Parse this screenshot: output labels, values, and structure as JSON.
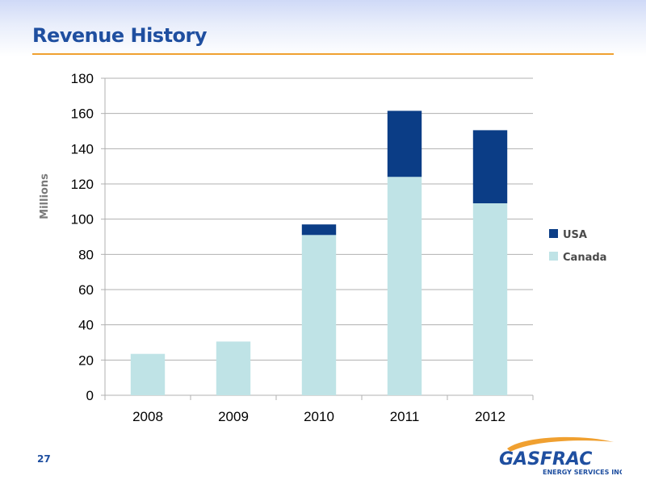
{
  "slide": {
    "title": "Revenue History",
    "page_number": "27"
  },
  "logo": {
    "name": "GASFRAC",
    "tagline": "ENERGY SERVICES INC.",
    "colors": {
      "text": "#1f4fa0",
      "swoosh": "#f0a030"
    }
  },
  "colors": {
    "title": "#1f4fa0",
    "rule": "#f0a030",
    "usa": "#0b3d86",
    "canada": "#bfe3e6",
    "grid": "#b0b0b0"
  },
  "chart_data": {
    "type": "bar",
    "stacked": true,
    "title": "",
    "xlabel": "",
    "ylabel": "Millions",
    "categories": [
      "2008",
      "2009",
      "2010",
      "2011",
      "2012"
    ],
    "series": [
      {
        "name": "Canada",
        "values": [
          23.5,
          30.5,
          91,
          124,
          109
        ]
      },
      {
        "name": "USA",
        "values": [
          0,
          0,
          6,
          37.5,
          41.5
        ]
      }
    ],
    "ylim": [
      0,
      180
    ],
    "yticks": [
      0,
      20,
      40,
      60,
      80,
      100,
      120,
      140,
      160,
      180
    ],
    "grid": true,
    "legend_position": "right",
    "legend_order": [
      "USA",
      "Canada"
    ]
  }
}
